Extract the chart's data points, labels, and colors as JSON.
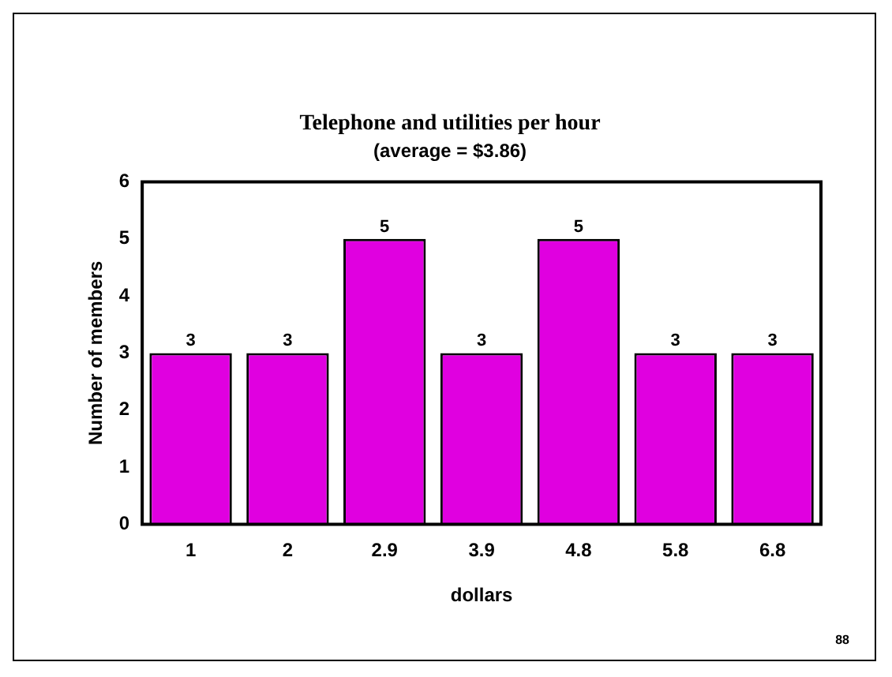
{
  "chart_data": {
    "type": "bar",
    "title": "Telephone and utilities per hour",
    "subtitle": "(average = $3.86)",
    "xlabel": "dollars",
    "ylabel": "Number of members",
    "categories": [
      "1",
      "2",
      "2.9",
      "3.9",
      "4.8",
      "5.8",
      "6.8"
    ],
    "values": [
      3,
      3,
      5,
      3,
      5,
      3,
      3
    ],
    "color": "#e000e0",
    "ylim": [
      0,
      6
    ],
    "yticks": [
      0,
      1,
      2,
      3,
      4,
      5,
      6
    ],
    "grid": false,
    "legend": false,
    "data_labels": true,
    "annotations": [
      "88"
    ]
  }
}
